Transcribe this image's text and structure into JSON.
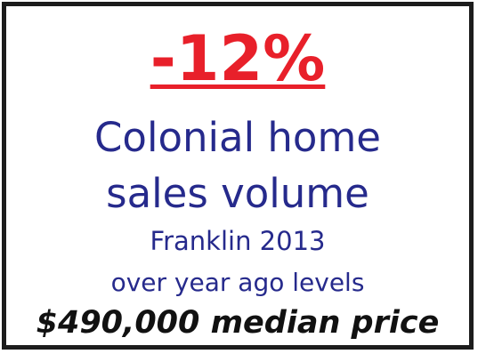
{
  "headline": {
    "value": "-12%"
  },
  "lines": {
    "line1": "Colonial home",
    "line2": "sales volume",
    "line3": "Franklin 2013",
    "line4": "over year ago levels"
  },
  "price": {
    "text": "$490,000 median price"
  },
  "colors": {
    "headline": "#e8202a",
    "body_text": "#262a8c",
    "price_text": "#111111",
    "border": "#1c1c1c",
    "background": "#ffffff"
  }
}
